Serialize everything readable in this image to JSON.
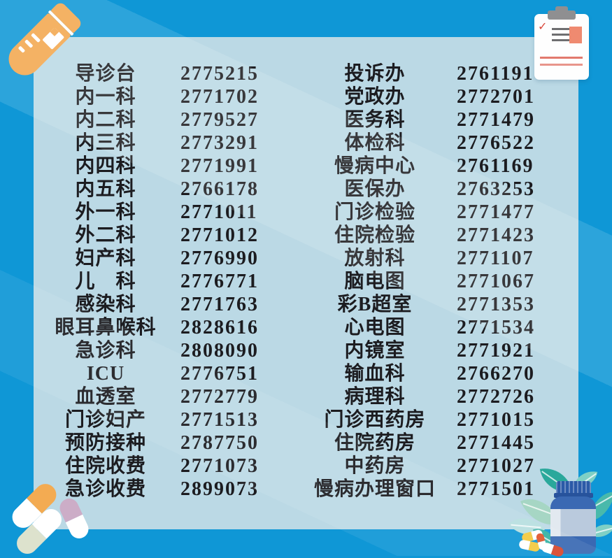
{
  "theme": {
    "background_color": "#0F97D6",
    "panel_color": "#BBD9E5",
    "text_color": "#1C1C20",
    "accent_orange": "#F3A74F",
    "accent_red": "#D9483B",
    "bottle_blue": "#3A69B3",
    "leaf_teal": "#2AA89B"
  },
  "icons": [
    {
      "name": "test-tube-icon"
    },
    {
      "name": "clipboard-icon"
    },
    {
      "name": "capsule-pills-icon"
    },
    {
      "name": "medicine-bottle-icon"
    },
    {
      "name": "leaves-icon"
    }
  ],
  "clipboard": {
    "check_glyph": "✓"
  },
  "directory": {
    "columns": [
      {
        "entries": [
          {
            "name": "导诊台",
            "phone": "2775215"
          },
          {
            "name": "内一科",
            "phone": "2771702"
          },
          {
            "name": "内二科",
            "phone": "2779527"
          },
          {
            "name": "内三科",
            "phone": "2773291"
          },
          {
            "name": "内四科",
            "phone": "2771991"
          },
          {
            "name": "内五科",
            "phone": "2766178"
          },
          {
            "name": "外一科",
            "phone": "2771011"
          },
          {
            "name": "外二科",
            "phone": "2771012"
          },
          {
            "name": "妇产科",
            "phone": "2776990"
          },
          {
            "name": "儿　科",
            "phone": "2776771"
          },
          {
            "name": "感染科",
            "phone": "2771763"
          },
          {
            "name": "眼耳鼻喉科",
            "phone": "2828616"
          },
          {
            "name": "急诊科",
            "phone": "2808090"
          },
          {
            "name": "ICU",
            "phone": "2776751"
          },
          {
            "name": "血透室",
            "phone": "2772779"
          },
          {
            "name": "门诊妇产",
            "phone": "2771513"
          },
          {
            "name": "预防接种",
            "phone": "2787750"
          },
          {
            "name": "住院收费",
            "phone": "2771073"
          },
          {
            "name": "急诊收费",
            "phone": "2899073"
          }
        ]
      },
      {
        "entries": [
          {
            "name": "投诉办",
            "phone": "2761191"
          },
          {
            "name": "党政办",
            "phone": "2772701"
          },
          {
            "name": "医务科",
            "phone": "2771479"
          },
          {
            "name": "体检科",
            "phone": "2776522"
          },
          {
            "name": "慢病中心",
            "phone": "2761169"
          },
          {
            "name": "医保办",
            "phone": "2763253"
          },
          {
            "name": "门诊检验",
            "phone": "2771477"
          },
          {
            "name": "住院检验",
            "phone": "2771423"
          },
          {
            "name": "放射科",
            "phone": "2771107"
          },
          {
            "name": "脑电图",
            "phone": "2771067"
          },
          {
            "name": "彩B超室",
            "phone": "2771353"
          },
          {
            "name": "心电图",
            "phone": "2771534"
          },
          {
            "name": "内镜室",
            "phone": "2771921"
          },
          {
            "name": "输血科",
            "phone": "2766270"
          },
          {
            "name": "病理科",
            "phone": "2772726"
          },
          {
            "name": "门诊西药房",
            "phone": "2771015"
          },
          {
            "name": "住院药房",
            "phone": "2771445"
          },
          {
            "name": "中药房",
            "phone": "2771027"
          },
          {
            "name": "慢病办理窗口",
            "phone": "2771501"
          }
        ]
      }
    ]
  }
}
